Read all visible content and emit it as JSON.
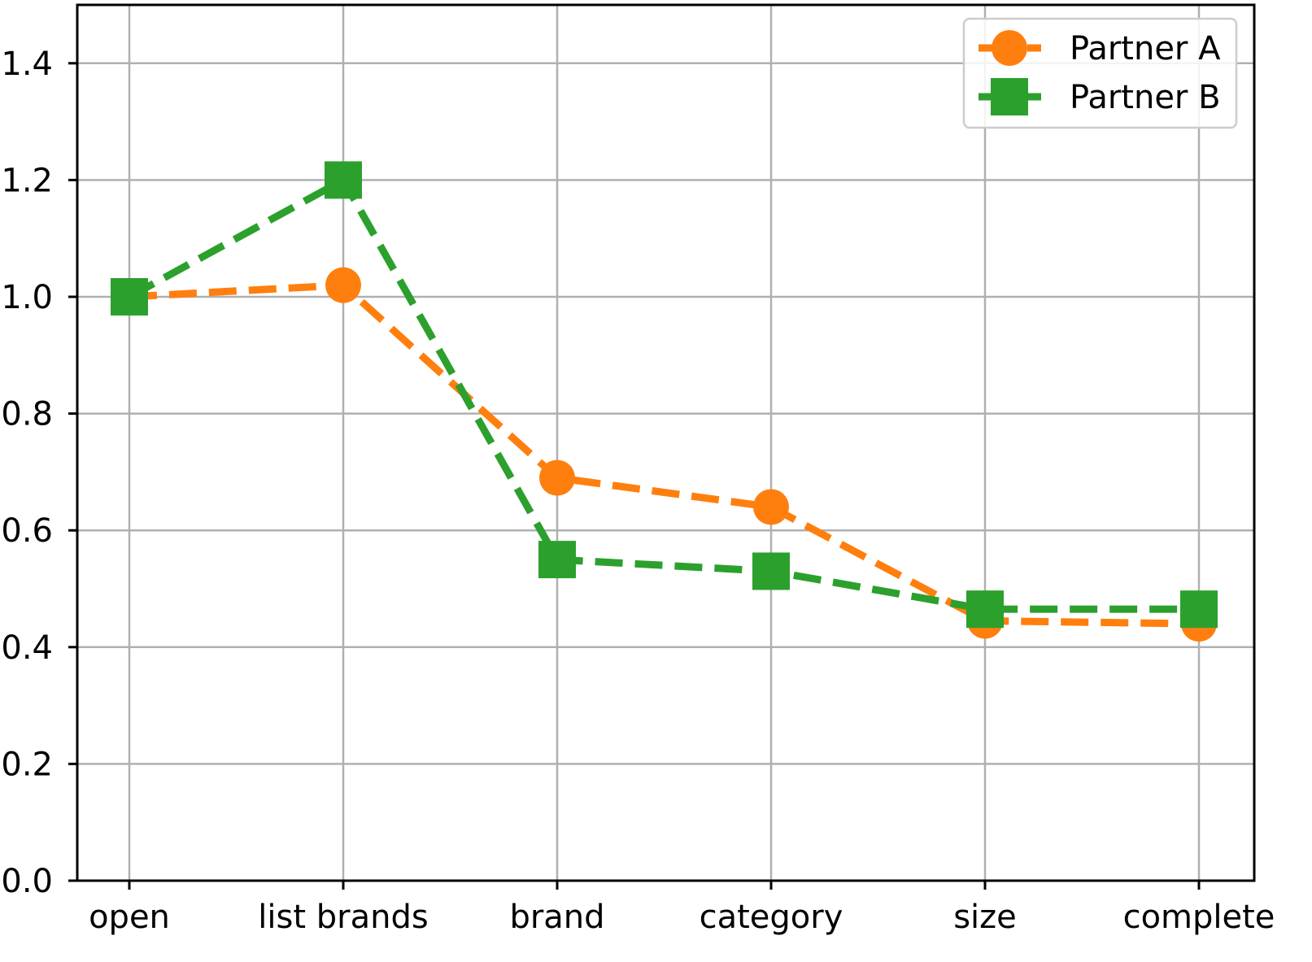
{
  "chart_data": {
    "type": "line",
    "categories": [
      "open",
      "list brands",
      "brand",
      "category",
      "size",
      "complete"
    ],
    "series": [
      {
        "name": "Partner A",
        "values": [
          1.0,
          1.02,
          0.69,
          0.64,
          0.445,
          0.44
        ],
        "color": "#ff7f0e",
        "marker": "circle",
        "linestyle": "dashed"
      },
      {
        "name": "Partner B",
        "values": [
          1.0,
          1.2,
          0.55,
          0.53,
          0.465,
          0.465
        ],
        "color": "#2ca02c",
        "marker": "square",
        "linestyle": "dashed"
      }
    ],
    "ylim": [
      0.0,
      1.5
    ],
    "yticks": [
      "0.0",
      "0.2",
      "0.4",
      "0.6",
      "0.8",
      "1.0",
      "1.2",
      "1.4"
    ],
    "grid": true,
    "legend_position": "top-right"
  }
}
